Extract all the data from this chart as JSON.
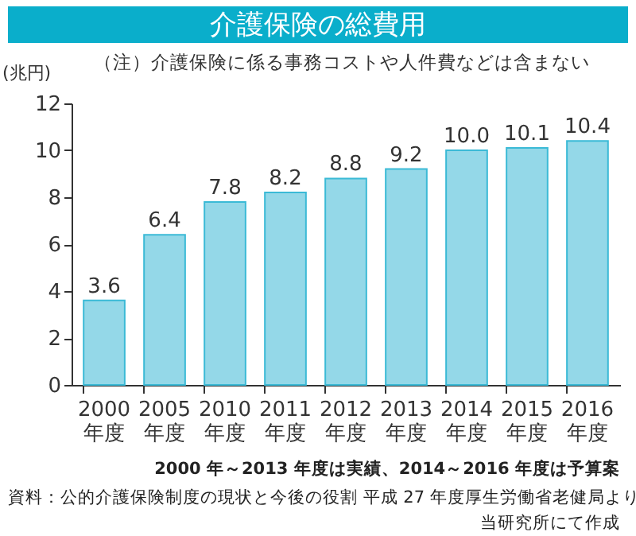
{
  "chart_data": {
    "type": "bar",
    "title": "介護保険の総費用",
    "subtitle": "（注）介護保険に係る事務コストや人件費などは含まない",
    "ylabel": "(兆円)",
    "categories": [
      "2000\n年度",
      "2005\n年度",
      "2010\n年度",
      "2011\n年度",
      "2012\n年度",
      "2013\n年度",
      "2014\n年度",
      "2015\n年度",
      "2016\n年度"
    ],
    "values": [
      3.6,
      6.4,
      7.8,
      8.2,
      8.8,
      9.2,
      10.0,
      10.1,
      10.4
    ],
    "value_labels": [
      "3.6",
      "6.4",
      "7.8",
      "8.2",
      "8.8",
      "9.2",
      "10.0",
      "10.1",
      "10.4"
    ],
    "color": "#94d8e8",
    "ylim": [
      0,
      12
    ],
    "yticks": [
      0,
      2,
      4,
      6,
      8,
      10,
      12
    ],
    "grid": false,
    "annotations": [
      "2000 年～2013 年度は実績、2014～2016 年度は予算案",
      "資料：公的介護保険制度の現状と今後の役割 平成 27 年度厚生労働省老健局より",
      "当研究所にて作成"
    ]
  }
}
